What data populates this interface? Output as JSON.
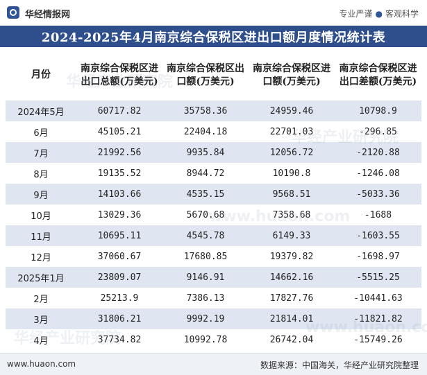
{
  "brand": {
    "name": "华经情报网",
    "logo_icon": "huajing-logo-icon",
    "slogan_left": "专业严谨",
    "slogan_separator": "●",
    "slogan_right": "客观科学"
  },
  "title": "2024-2025年4月南京综合保税区进出口额月度情况统计表",
  "table": {
    "headers": [
      "月份",
      "南京综合保税区进出口总额(万美元)",
      "南京综合保税区出口额(万美元)",
      "南京综合保税区进口额(万美元)",
      "南京综合保税区进出口差额(万美元)"
    ],
    "rows": [
      [
        "2024年5月",
        "60717.82",
        "35758.36",
        "24959.46",
        "10798.9"
      ],
      [
        "6月",
        "45105.21",
        "22404.18",
        "22701.03",
        "-296.85"
      ],
      [
        "7月",
        "21992.56",
        "9935.84",
        "12056.72",
        "-2120.88"
      ],
      [
        "8月",
        "19135.52",
        "8944.72",
        "10190.8",
        "-1246.08"
      ],
      [
        "9月",
        "14103.66",
        "4535.15",
        "9568.51",
        "-5033.36"
      ],
      [
        "10月",
        "13029.36",
        "5670.68",
        "7358.68",
        "-1688"
      ],
      [
        "11月",
        "10695.11",
        "4545.78",
        "6149.33",
        "-1603.55"
      ],
      [
        "12月",
        "37060.67",
        "17680.85",
        "19379.82",
        "-1698.97"
      ],
      [
        "2025年1月",
        "23809.07",
        "9146.91",
        "14662.16",
        "-5515.25"
      ],
      [
        "2月",
        "25213.9",
        "7386.13",
        "17827.76",
        "-10441.63"
      ],
      [
        "3月",
        "31806.21",
        "9992.19",
        "21814.01",
        "-11821.82"
      ],
      [
        "4月",
        "37734.82",
        "10992.78",
        "26742.04",
        "-15749.26"
      ]
    ]
  },
  "watermarks": [
    "华经产业研究院",
    "www.huaon.com"
  ],
  "footer": {
    "url": "www.huaon.com",
    "source": "数据来源：中国海关，华经产业研究院整理"
  },
  "colors": {
    "title_bg": "#2e4f8c",
    "stripe": "#dfe6f2"
  }
}
